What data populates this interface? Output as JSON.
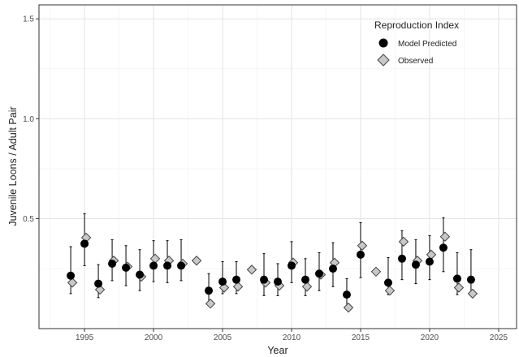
{
  "chart_data": {
    "type": "scatter",
    "xlabel": "Year",
    "ylabel": "Juvenile Loons / Adult Pair",
    "xlim": [
      1991.7,
      2026.3
    ],
    "ylim": [
      -0.05,
      1.57
    ],
    "x_ticks": [
      1995,
      2000,
      2005,
      2010,
      2015,
      2020,
      2025
    ],
    "x_tick_labels": [
      "1995",
      "2000",
      "2005",
      "2010",
      "2015",
      "2020",
      "2025"
    ],
    "y_ticks": [
      0.5,
      1.0,
      1.5
    ],
    "y_tick_labels": [
      "0.5",
      "1.0",
      "1.5"
    ],
    "grid": true,
    "legend": {
      "title": "Reproduction Index",
      "position": "top-right",
      "entries": [
        "Model Predicted",
        "Observed"
      ]
    },
    "series": [
      {
        "name": "Model Predicted",
        "marker": "circle",
        "color": "#000000",
        "x": [
          1994,
          1995,
          1996,
          1997,
          1998,
          1999,
          2000,
          2001,
          2002,
          2004,
          2005,
          2006,
          2008,
          2009,
          2010,
          2011,
          2012,
          2013,
          2014,
          2015,
          2017,
          2018,
          2019,
          2020,
          2021,
          2022,
          2023
        ],
        "y": [
          0.215,
          0.375,
          0.175,
          0.275,
          0.255,
          0.22,
          0.265,
          0.265,
          0.265,
          0.14,
          0.185,
          0.195,
          0.195,
          0.185,
          0.265,
          0.195,
          0.225,
          0.25,
          0.12,
          0.32,
          0.18,
          0.3,
          0.27,
          0.285,
          0.355,
          0.2,
          0.195
        ],
        "lower": [
          0.125,
          0.265,
          0.105,
          0.19,
          0.165,
          0.14,
          0.185,
          0.18,
          0.19,
          0.075,
          0.125,
          0.125,
          0.115,
          0.115,
          0.18,
          0.115,
          0.14,
          0.16,
          0.045,
          0.205,
          0.12,
          0.195,
          0.175,
          0.195,
          0.235,
          0.12,
          0.12
        ],
        "upper": [
          0.36,
          0.525,
          0.27,
          0.395,
          0.365,
          0.345,
          0.39,
          0.39,
          0.395,
          0.225,
          0.285,
          0.285,
          0.325,
          0.275,
          0.385,
          0.3,
          0.33,
          0.38,
          0.2,
          0.48,
          0.305,
          0.44,
          0.395,
          0.415,
          0.505,
          0.33,
          0.345
        ]
      },
      {
        "name": "Observed",
        "marker": "diamond",
        "color": "#c8c8c8",
        "x": [
          1994,
          1995,
          1996,
          1997,
          1998,
          1999,
          2000,
          2001,
          2002,
          2003,
          2004,
          2005,
          2006,
          2007,
          2008,
          2009,
          2010,
          2011,
          2012,
          2013,
          2014,
          2015,
          2016,
          2017,
          2018,
          2019,
          2020,
          2021,
          2022,
          2023
        ],
        "y": [
          0.18,
          0.405,
          0.145,
          0.29,
          0.26,
          0.21,
          0.3,
          0.29,
          0.275,
          0.29,
          0.075,
          0.155,
          0.16,
          0.245,
          0.18,
          0.165,
          0.28,
          0.16,
          0.22,
          0.28,
          0.055,
          0.365,
          0.235,
          0.14,
          0.385,
          0.29,
          0.32,
          0.41,
          0.155,
          0.125
        ]
      }
    ]
  }
}
